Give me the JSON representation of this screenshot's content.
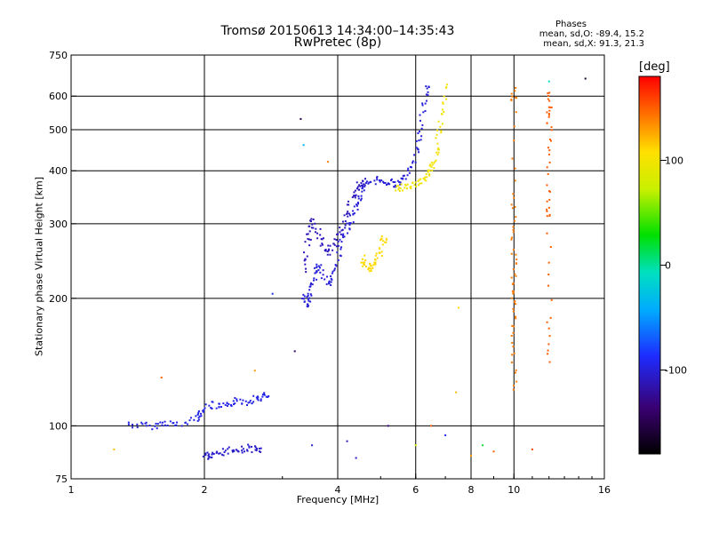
{
  "header": {
    "title": "Tromsø 20150613 14:34:00–14:35:43",
    "subtitle": "RwPretec (8p)",
    "stats_title": "Phases",
    "stats_line1": "mean, sd,O: -89.4, 15.2",
    "stats_line2": "mean, sd,X:  91.3, 21.3"
  },
  "colorbar": {
    "unit": "[deg]",
    "ticks": [
      {
        "value": 100,
        "label": "100"
      },
      {
        "value": 0,
        "label": "0"
      },
      {
        "value": -100,
        "label": "-100"
      }
    ],
    "range": [
      -180,
      180
    ]
  },
  "chart_data": {
    "type": "scatter",
    "xlabel": "Frequency [MHz]",
    "ylabel": "Stationary phase Virtual Height [km]",
    "xscale": "log",
    "yscale": "log",
    "xlim": [
      1,
      16
    ],
    "ylim": [
      75,
      750
    ],
    "xticks": [
      {
        "value": 1,
        "label": "1"
      },
      {
        "value": 2,
        "label": "2"
      },
      {
        "value": 4,
        "label": "4"
      },
      {
        "value": 6,
        "label": "6"
      },
      {
        "value": 8,
        "label": "8"
      },
      {
        "value": 10,
        "label": "10"
      },
      {
        "value": 16,
        "label": "16"
      }
    ],
    "yticks": [
      {
        "value": 75,
        "label": "75"
      },
      {
        "value": 100,
        "label": "100"
      },
      {
        "value": 200,
        "label": "200"
      },
      {
        "value": 300,
        "label": "300"
      },
      {
        "value": 400,
        "label": "400"
      },
      {
        "value": 500,
        "label": "500"
      },
      {
        "value": 600,
        "label": "600"
      },
      {
        "value": 750,
        "label": "750"
      }
    ],
    "grid_x": [
      2,
      4,
      6,
      8,
      10
    ],
    "grid_y": [
      100,
      200,
      300,
      400,
      500,
      600
    ],
    "color_by": "phase (deg)",
    "traces": [
      {
        "name": "E-layer O trace",
        "phase": -95,
        "points": [
          [
            1.35,
            101
          ],
          [
            1.45,
            100
          ],
          [
            1.55,
            100
          ],
          [
            1.65,
            102
          ],
          [
            1.75,
            100
          ],
          [
            1.9,
            104
          ],
          [
            1.95,
            106
          ],
          [
            2.0,
            110
          ],
          [
            2.1,
            112
          ],
          [
            2.2,
            110
          ],
          [
            2.3,
            113
          ],
          [
            2.4,
            115
          ],
          [
            2.5,
            114
          ],
          [
            2.6,
            116
          ],
          [
            2.7,
            117
          ],
          [
            2.8,
            118
          ]
        ]
      },
      {
        "name": "E-layer lower",
        "phase": -105,
        "points": [
          [
            2.0,
            86
          ],
          [
            2.05,
            84
          ],
          [
            2.1,
            85
          ],
          [
            2.2,
            87
          ],
          [
            2.3,
            88
          ],
          [
            2.4,
            87
          ],
          [
            2.5,
            89
          ],
          [
            2.6,
            88
          ],
          [
            2.7,
            87
          ]
        ]
      },
      {
        "name": "F1 O trace lower",
        "phase": -100,
        "points": [
          [
            3.35,
            200
          ],
          [
            3.4,
            194
          ],
          [
            3.45,
            198
          ],
          [
            3.5,
            210
          ],
          [
            3.55,
            225
          ],
          [
            3.6,
            240
          ],
          [
            3.7,
            230
          ],
          [
            3.8,
            215
          ],
          [
            3.9,
            225
          ],
          [
            4.0,
            245
          ],
          [
            4.1,
            270
          ],
          [
            4.2,
            290
          ],
          [
            4.3,
            310
          ],
          [
            4.4,
            330
          ],
          [
            4.5,
            350
          ],
          [
            4.6,
            365
          ],
          [
            4.8,
            378
          ],
          [
            5.0,
            382
          ],
          [
            5.2,
            375
          ],
          [
            5.4,
            372
          ],
          [
            5.6,
            380
          ],
          [
            5.8,
            395
          ],
          [
            6.0,
            430
          ],
          [
            6.1,
            470
          ],
          [
            6.2,
            530
          ],
          [
            6.3,
            590
          ],
          [
            6.4,
            640
          ]
        ]
      },
      {
        "name": "F1 O trace upper",
        "phase": -110,
        "points": [
          [
            3.35,
            230
          ],
          [
            3.4,
            260
          ],
          [
            3.45,
            285
          ],
          [
            3.5,
            305
          ],
          [
            3.6,
            290
          ],
          [
            3.7,
            270
          ],
          [
            3.8,
            255
          ],
          [
            3.9,
            265
          ],
          [
            4.0,
            280
          ],
          [
            4.1,
            295
          ],
          [
            4.2,
            315
          ],
          [
            4.3,
            340
          ],
          [
            4.4,
            360
          ],
          [
            4.5,
            372
          ],
          [
            4.6,
            380
          ]
        ]
      },
      {
        "name": "F X trace",
        "phase": 100,
        "points": [
          [
            5.4,
            360
          ],
          [
            5.6,
            365
          ],
          [
            5.8,
            368
          ],
          [
            6.0,
            372
          ],
          [
            6.2,
            380
          ],
          [
            6.4,
            390
          ],
          [
            6.5,
            400
          ],
          [
            6.6,
            420
          ],
          [
            6.7,
            450
          ],
          [
            6.8,
            500
          ],
          [
            6.9,
            560
          ],
          [
            7.0,
            640
          ]
        ]
      },
      {
        "name": "X patch",
        "phase": 110,
        "points": [
          [
            4.55,
            250
          ],
          [
            4.6,
            240
          ],
          [
            4.7,
            235
          ],
          [
            4.8,
            240
          ],
          [
            4.9,
            245
          ],
          [
            5.0,
            255
          ],
          [
            5.05,
            270
          ],
          [
            5.1,
            280
          ]
        ]
      },
      {
        "name": "10 MHz column",
        "phase": 140,
        "points": [
          [
            10.0,
            620
          ],
          [
            10.0,
            580
          ],
          [
            10.0,
            350
          ],
          [
            10.0,
            300
          ],
          [
            10.0,
            250
          ],
          [
            10.0,
            220
          ],
          [
            10.0,
            200
          ],
          [
            10.0,
            180
          ],
          [
            10.0,
            150
          ],
          [
            10.0,
            120
          ]
        ]
      },
      {
        "name": "12 MHz column",
        "phase": 150,
        "points": [
          [
            12.0,
            610
          ],
          [
            12.0,
            560
          ],
          [
            12.0,
            520
          ],
          [
            12.0,
            430
          ],
          [
            12.0,
            340
          ],
          [
            12.0,
            310
          ],
          [
            12.0,
            180
          ],
          [
            12.0,
            140
          ]
        ]
      }
    ],
    "scatter_points": [
      {
        "x": 1.25,
        "y": 88,
        "phase": 120
      },
      {
        "x": 1.6,
        "y": 130,
        "phase": 150
      },
      {
        "x": 2.6,
        "y": 135,
        "phase": 130
      },
      {
        "x": 2.85,
        "y": 205,
        "phase": -90
      },
      {
        "x": 3.2,
        "y": 150,
        "phase": -140
      },
      {
        "x": 3.3,
        "y": 530,
        "phase": -150
      },
      {
        "x": 3.35,
        "y": 460,
        "phase": -40
      },
      {
        "x": 3.8,
        "y": 420,
        "phase": 140
      },
      {
        "x": 3.5,
        "y": 90,
        "phase": -100
      },
      {
        "x": 4.2,
        "y": 92,
        "phase": -110
      },
      {
        "x": 4.4,
        "y": 84,
        "phase": -105
      },
      {
        "x": 5.2,
        "y": 100,
        "phase": -130
      },
      {
        "x": 6.0,
        "y": 90,
        "phase": 80
      },
      {
        "x": 6.5,
        "y": 100,
        "phase": 150
      },
      {
        "x": 7.0,
        "y": 95,
        "phase": -90
      },
      {
        "x": 7.5,
        "y": 190,
        "phase": 110
      },
      {
        "x": 7.4,
        "y": 120,
        "phase": 120
      },
      {
        "x": 8.0,
        "y": 85,
        "phase": 130
      },
      {
        "x": 8.5,
        "y": 90,
        "phase": 20
      },
      {
        "x": 9.0,
        "y": 87,
        "phase": 150
      },
      {
        "x": 11.0,
        "y": 88,
        "phase": 160
      },
      {
        "x": 12.0,
        "y": 650,
        "phase": -10
      },
      {
        "x": 14.5,
        "y": 660,
        "phase": -160
      }
    ]
  }
}
